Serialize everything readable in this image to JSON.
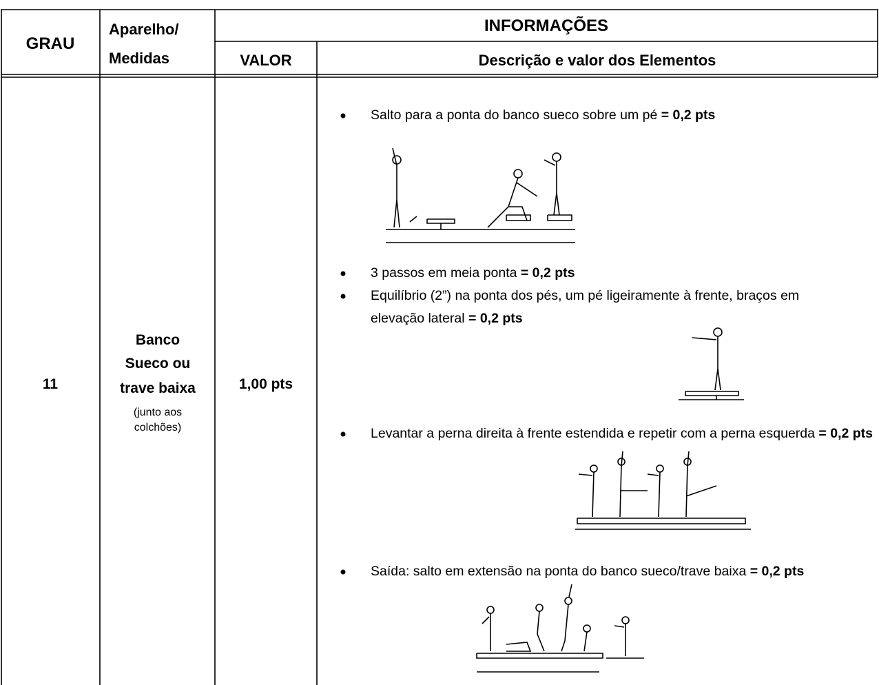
{
  "header": {
    "grau": "GRAU",
    "aparelho": "Aparelho/",
    "medidas": "Medidas",
    "informacoes": "INFORMAÇÕES",
    "valor": "VALOR",
    "descricao": "Descrição e valor dos Elementos"
  },
  "row": {
    "grau": "11",
    "aparelho": [
      "Banco",
      "Sueco ou",
      "trave baixa"
    ],
    "note": [
      "(junto aos",
      "colchões)"
    ],
    "valor": "1,00 pts",
    "items": [
      {
        "text": "Salto para a ponta do banco sueco sobre um pé",
        "points": "= 0,2 pts"
      },
      {
        "text": "3 passos em meia ponta",
        "points": "= 0,2 pts"
      },
      {
        "text": "Equilíbrio (2”) na ponta dos pés, um pé ligeiramente à frente, braços em elevação lateral",
        "points": "= 0,2 pts"
      },
      {
        "text": "Levantar a perna direita à frente estendida e repetir com a perna esquerda",
        "points": "= 0,2 pts"
      },
      {
        "text": "Saída: salto em extensão na ponta do banco sueco/trave baixa",
        "points": "= 0,2 pts"
      }
    ]
  }
}
